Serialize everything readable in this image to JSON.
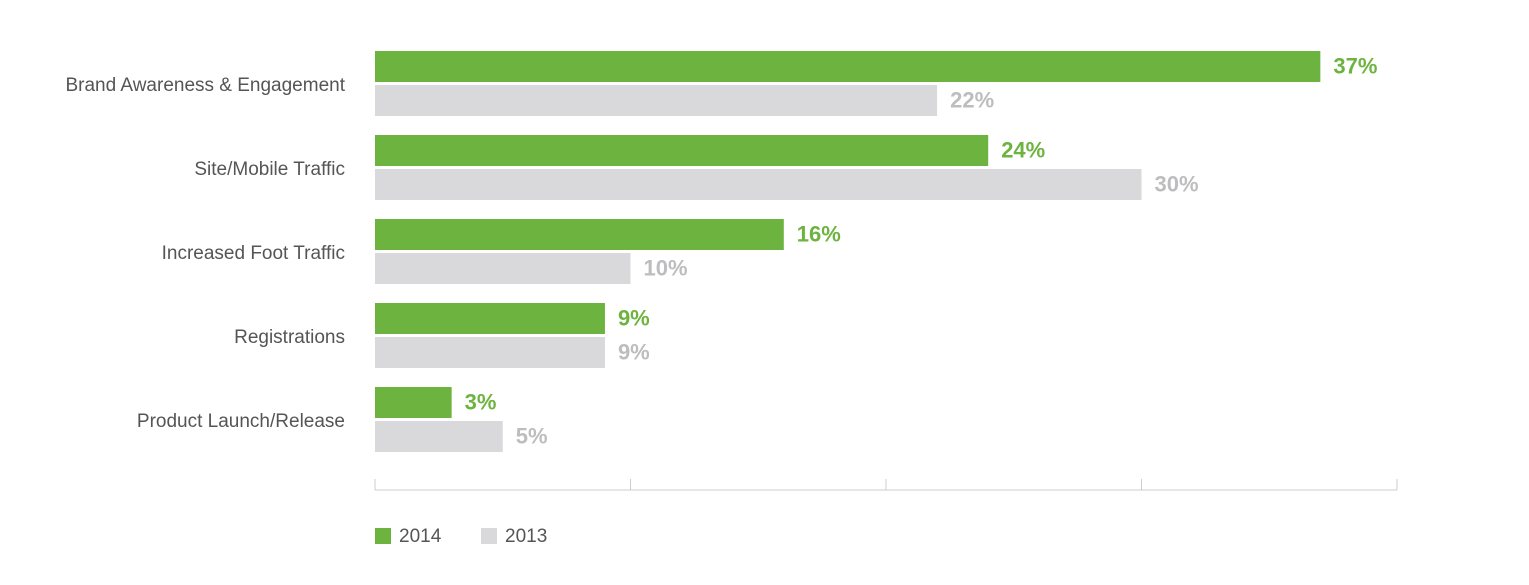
{
  "chart_data": {
    "type": "bar",
    "orientation": "horizontal",
    "categories": [
      "Brand Awareness & Engagement",
      "Site/Mobile Traffic",
      "Increased Foot Traffic",
      "Registrations",
      "Product Launch/Release"
    ],
    "series": [
      {
        "name": "2014",
        "color": "#6db33f",
        "values": [
          37,
          24,
          16,
          9,
          3
        ],
        "labels": [
          "37%",
          "24%",
          "16%",
          "9%",
          "3%"
        ]
      },
      {
        "name": "2013",
        "color": "#d9d9db",
        "label_color": "#bdbdbf",
        "values": [
          22,
          30,
          10,
          9,
          5
        ],
        "labels": [
          "22%",
          "30%",
          "10%",
          "9%",
          "5%"
        ]
      }
    ],
    "xlim": [
      0,
      40
    ],
    "x_ticks": [
      0,
      10,
      20,
      30,
      40
    ],
    "grid": false,
    "legend_position": "bottom-left"
  }
}
